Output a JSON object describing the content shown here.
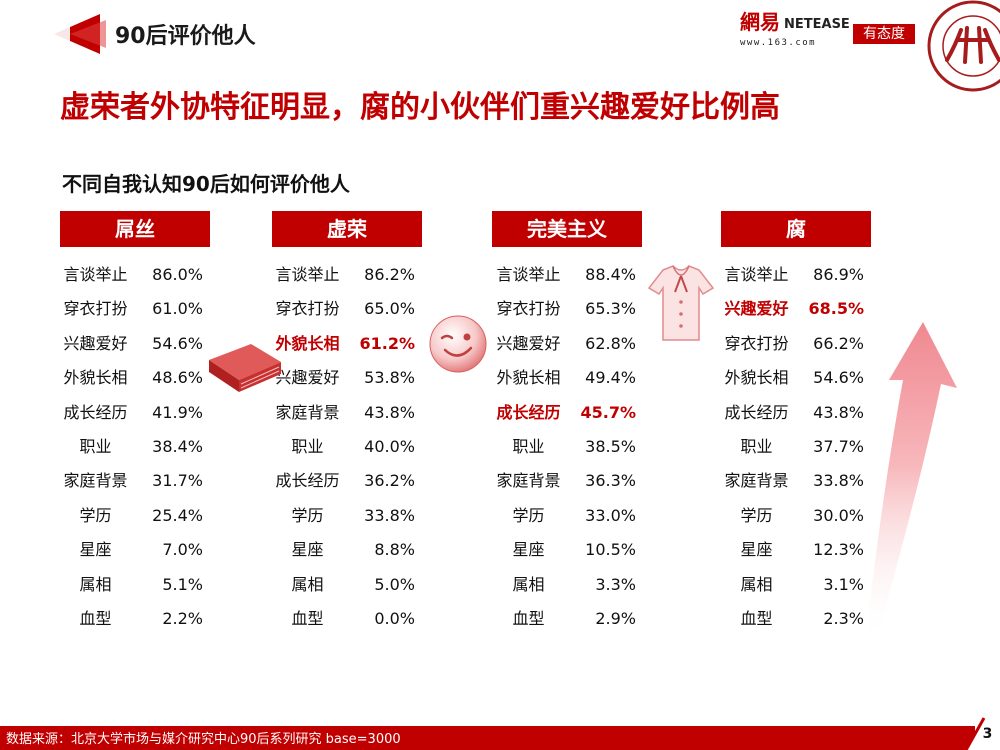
{
  "header": {
    "section_title": "90后评价他人",
    "brand_netease_cn": "網易",
    "brand_netease_en": "NETEASE",
    "brand_netease_url": "www.163.com",
    "brand_youtaidu": "有态度"
  },
  "headline": "虚荣者外协特征明显，腐的小伙伴们重兴趣爱好比例高",
  "subtitle": "不同自我认知90后如何评价他人",
  "footer": {
    "source": "数据来源：北京大学市场与媒介研究中心90后系列研究 base=3000",
    "page_number": "3"
  },
  "colors": {
    "accent": "#c00000",
    "arrow": "#f5a0a6"
  },
  "chart_data": {
    "type": "table",
    "tables": [
      {
        "name": "屌丝",
        "rows": [
          {
            "label": "言谈举止",
            "value": "86.0%"
          },
          {
            "label": "穿衣打扮",
            "value": "61.0%"
          },
          {
            "label": "兴趣爱好",
            "value": "54.6%"
          },
          {
            "label": "外貌长相",
            "value": "48.6%"
          },
          {
            "label": "成长经历",
            "value": "41.9%"
          },
          {
            "label": "职业",
            "value": "38.4%"
          },
          {
            "label": "家庭背景",
            "value": "31.7%"
          },
          {
            "label": "学历",
            "value": "25.4%"
          },
          {
            "label": "星座",
            "value": "7.0%"
          },
          {
            "label": "属相",
            "value": "5.1%"
          },
          {
            "label": "血型",
            "value": "2.2%"
          }
        ]
      },
      {
        "name": "虚荣",
        "rows": [
          {
            "label": "言谈举止",
            "value": "86.2%"
          },
          {
            "label": "穿衣打扮",
            "value": "65.0%"
          },
          {
            "label": "外貌长相",
            "value": "61.2%",
            "highlight": true
          },
          {
            "label": "兴趣爱好",
            "value": "53.8%"
          },
          {
            "label": "家庭背景",
            "value": "43.8%"
          },
          {
            "label": "职业",
            "value": "40.0%"
          },
          {
            "label": "成长经历",
            "value": "36.2%"
          },
          {
            "label": "学历",
            "value": "33.8%"
          },
          {
            "label": "星座",
            "value": "8.8%"
          },
          {
            "label": "属相",
            "value": "5.0%"
          },
          {
            "label": "血型",
            "value": "0.0%"
          }
        ]
      },
      {
        "name": "完美主义",
        "rows": [
          {
            "label": "言谈举止",
            "value": "88.4%"
          },
          {
            "label": "穿衣打扮",
            "value": "65.3%"
          },
          {
            "label": "兴趣爱好",
            "value": "62.8%"
          },
          {
            "label": "外貌长相",
            "value": "49.4%"
          },
          {
            "label": "成长经历",
            "value": "45.7%",
            "highlight": true
          },
          {
            "label": "职业",
            "value": "38.5%"
          },
          {
            "label": "家庭背景",
            "value": "36.3%"
          },
          {
            "label": "学历",
            "value": "33.0%"
          },
          {
            "label": "星座",
            "value": "10.5%"
          },
          {
            "label": "属相",
            "value": "3.3%"
          },
          {
            "label": "血型",
            "value": "2.9%"
          }
        ]
      },
      {
        "name": "腐",
        "rows": [
          {
            "label": "言谈举止",
            "value": "86.9%"
          },
          {
            "label": "兴趣爱好",
            "value": "68.5%",
            "highlight": true
          },
          {
            "label": "穿衣打扮",
            "value": "66.2%"
          },
          {
            "label": "外貌长相",
            "value": "54.6%"
          },
          {
            "label": "成长经历",
            "value": "43.8%"
          },
          {
            "label": "职业",
            "value": "37.7%"
          },
          {
            "label": "家庭背景",
            "value": "33.8%"
          },
          {
            "label": "学历",
            "value": "30.0%"
          },
          {
            "label": "星座",
            "value": "12.3%"
          },
          {
            "label": "属相",
            "value": "3.1%"
          },
          {
            "label": "血型",
            "value": "2.3%"
          }
        ]
      }
    ]
  }
}
